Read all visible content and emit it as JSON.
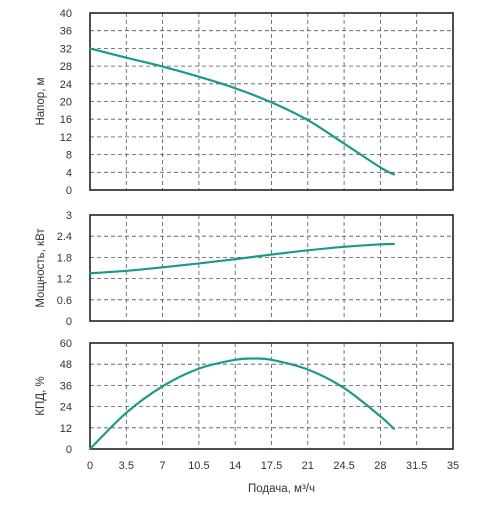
{
  "colors": {
    "curve": "#1a9a8a",
    "frame": "#222222",
    "grid": "#555555"
  },
  "chart_data": [
    {
      "type": "line",
      "ylabel": "Напор, м",
      "xlim": [
        0,
        35
      ],
      "ylim": [
        0,
        40
      ],
      "yticks": [
        "40",
        "36",
        "32",
        "28",
        "24",
        "20",
        "16",
        "12",
        "8",
        "4",
        "0"
      ],
      "grid": true,
      "series": [
        {
          "x": [
            0,
            3.5,
            7,
            10.5,
            14,
            17.5,
            21,
            24.5,
            28,
            29.3
          ],
          "y": [
            32,
            29.9,
            27.9,
            25.6,
            23.0,
            19.8,
            15.8,
            10.5,
            5.1,
            3.5
          ]
        }
      ]
    },
    {
      "type": "line",
      "ylabel": "Мощность, кВт",
      "xlim": [
        0,
        35
      ],
      "ylim": [
        0,
        3
      ],
      "yticks": [
        "3",
        "2.4",
        "1.8",
        "1.2",
        "0.6",
        "0"
      ],
      "grid": true,
      "series": [
        {
          "x": [
            0,
            3.5,
            7,
            10.5,
            14,
            17.5,
            21,
            24.5,
            28,
            29.3
          ],
          "y": [
            1.35,
            1.42,
            1.52,
            1.63,
            1.75,
            1.88,
            2.0,
            2.1,
            2.17,
            2.18
          ]
        }
      ]
    },
    {
      "type": "line",
      "ylabel": "КПД, %",
      "xlabel": "Подача, м³/ч",
      "xlim": [
        0,
        35
      ],
      "ylim": [
        0,
        60
      ],
      "xticks": [
        "0",
        "3.5",
        "7",
        "10.5",
        "14",
        "17.5",
        "21",
        "24.5",
        "28",
        "31.5",
        "35"
      ],
      "yticks": [
        "60",
        "48",
        "36",
        "24",
        "12",
        "0"
      ],
      "grid": true,
      "series": [
        {
          "x": [
            0,
            3.5,
            7,
            10.5,
            14,
            15.8,
            17.5,
            21,
            24.5,
            28,
            29.3
          ],
          "y": [
            0,
            20.5,
            35.5,
            45.5,
            50.5,
            51.2,
            50.5,
            45.0,
            34.5,
            18.5,
            11.5
          ]
        }
      ]
    }
  ]
}
